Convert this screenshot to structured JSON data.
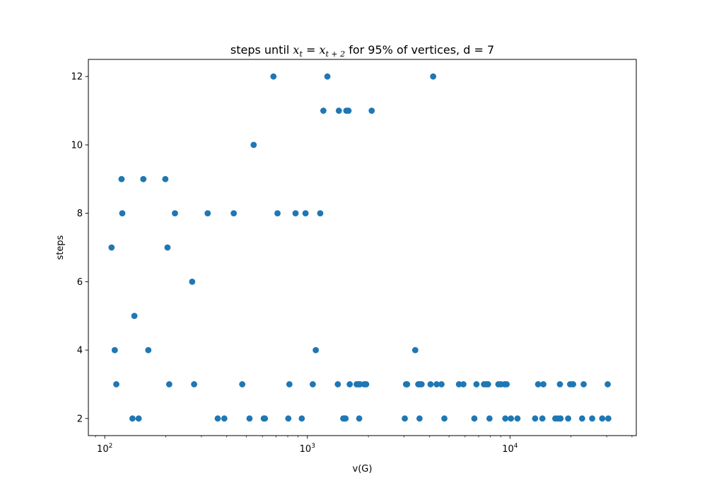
{
  "chart_data": {
    "type": "scatter",
    "title": "steps until x_t = x_{t+2} for 95% of vertices, d = 7",
    "title_parts": {
      "prefix": "steps until ",
      "var": "x",
      "sub1": "t",
      "eq": " = ",
      "sub2": "t + 2",
      "suffix": " for 95% of vertices, d = 7"
    },
    "xlabel": "v(G)",
    "ylabel": "steps",
    "x_scale": "log",
    "xlim": [
      83,
      42000
    ],
    "ylim": [
      1.5,
      12.5
    ],
    "x_ticks": [
      {
        "value": 100,
        "base": "10",
        "exp": "2"
      },
      {
        "value": 1000,
        "base": "10",
        "exp": "3"
      },
      {
        "value": 10000,
        "base": "10",
        "exp": "4"
      }
    ],
    "y_ticks": [
      2,
      4,
      6,
      8,
      10,
      12
    ],
    "grid": false,
    "marker_color": "#1f77b4",
    "series": [
      {
        "points": [
          [
            108,
            7
          ],
          [
            112,
            4
          ],
          [
            114,
            3
          ],
          [
            121,
            9
          ],
          [
            122,
            8
          ],
          [
            137,
            2
          ],
          [
            140,
            5
          ],
          [
            147,
            2
          ],
          [
            155,
            9
          ],
          [
            164,
            4
          ],
          [
            199,
            9
          ],
          [
            204,
            7
          ],
          [
            208,
            3
          ],
          [
            222,
            8
          ],
          [
            270,
            6
          ],
          [
            276,
            3
          ],
          [
            322,
            8
          ],
          [
            361,
            2
          ],
          [
            389,
            2
          ],
          [
            433,
            8
          ],
          [
            477,
            3
          ],
          [
            518,
            2
          ],
          [
            543,
            10
          ],
          [
            609,
            2
          ],
          [
            617,
            2
          ],
          [
            680,
            12
          ],
          [
            712,
            8
          ],
          [
            805,
            2
          ],
          [
            815,
            3
          ],
          [
            874,
            8
          ],
          [
            938,
            2
          ],
          [
            979,
            8
          ],
          [
            1063,
            3
          ],
          [
            1100,
            4
          ],
          [
            1157,
            8
          ],
          [
            1199,
            11
          ],
          [
            1255,
            12
          ],
          [
            1413,
            3
          ],
          [
            1430,
            11
          ],
          [
            1503,
            2
          ],
          [
            1528,
            2
          ],
          [
            1543,
            2
          ],
          [
            1557,
            11
          ],
          [
            1596,
            11
          ],
          [
            1618,
            3
          ],
          [
            1750,
            3
          ],
          [
            1784,
            3
          ],
          [
            1802,
            2
          ],
          [
            1817,
            3
          ],
          [
            1907,
            3
          ],
          [
            1950,
            3
          ],
          [
            2076,
            11
          ],
          [
            3025,
            2
          ],
          [
            3068,
            3
          ],
          [
            3105,
            3
          ],
          [
            3406,
            4
          ],
          [
            3526,
            3
          ],
          [
            3576,
            2
          ],
          [
            3590,
            3
          ],
          [
            3660,
            3
          ],
          [
            4053,
            3
          ],
          [
            4175,
            12
          ],
          [
            4344,
            3
          ],
          [
            4591,
            3
          ],
          [
            4743,
            2
          ],
          [
            5599,
            3
          ],
          [
            5887,
            3
          ],
          [
            6668,
            2
          ],
          [
            6830,
            3
          ],
          [
            7439,
            3
          ],
          [
            7634,
            3
          ],
          [
            7792,
            3
          ],
          [
            7919,
            2
          ],
          [
            8762,
            3
          ],
          [
            9009,
            3
          ],
          [
            9393,
            3
          ],
          [
            9479,
            2
          ],
          [
            9624,
            3
          ],
          [
            10107,
            2
          ],
          [
            10883,
            2
          ],
          [
            13300,
            2
          ],
          [
            13763,
            3
          ],
          [
            14444,
            2
          ],
          [
            14602,
            3
          ],
          [
            16727,
            2
          ],
          [
            17265,
            2
          ],
          [
            17630,
            3
          ],
          [
            17761,
            2
          ],
          [
            19364,
            2
          ],
          [
            19803,
            3
          ],
          [
            20479,
            3
          ],
          [
            22689,
            2
          ],
          [
            23088,
            3
          ],
          [
            25438,
            2
          ],
          [
            28516,
            2
          ],
          [
            30346,
            3
          ],
          [
            30550,
            2
          ]
        ]
      }
    ]
  }
}
